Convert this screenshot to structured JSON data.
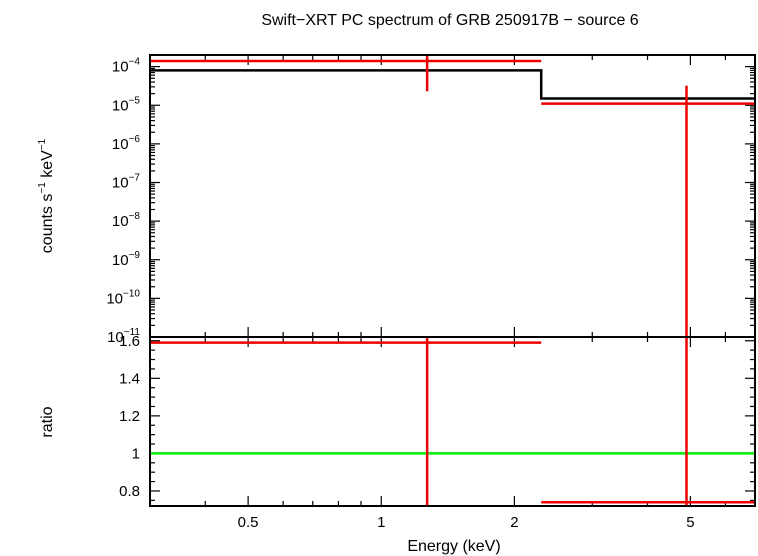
{
  "chart_data": {
    "title": "Swift−XRT PC spectrum of GRB 250917B − source 6",
    "xlabel": "Energy (keV)",
    "x_scale": "log",
    "xlim": [
      0.3,
      7.0
    ],
    "x_ticks": [
      {
        "value": 0.5,
        "label": "0.5"
      },
      {
        "value": 1,
        "label": "1"
      },
      {
        "value": 2,
        "label": "2"
      },
      {
        "value": 5,
        "label": "5"
      }
    ],
    "panels": [
      {
        "id": "spectrum",
        "type": "line",
        "ylabel_main": "counts s",
        "ylabel_sup1": "−1",
        "ylabel_mid": " keV",
        "ylabel_sup2": "−1",
        "y_scale": "log",
        "ylim": [
          1e-11,
          0.0002
        ],
        "y_ticks": [
          {
            "value": 0.0001,
            "base": "10",
            "exp": "−4"
          },
          {
            "value": 1e-05,
            "base": "10",
            "exp": "−5"
          },
          {
            "value": 1e-06,
            "base": "10",
            "exp": "−6"
          },
          {
            "value": 1e-07,
            "base": "10",
            "exp": "−7"
          },
          {
            "value": 1e-08,
            "base": "10",
            "exp": "−8"
          },
          {
            "value": 1e-09,
            "base": "10",
            "exp": "−9"
          },
          {
            "value": 1e-10,
            "base": "10",
            "exp": "−10"
          },
          {
            "value": 1e-11,
            "base": "10",
            "exp": "−11"
          }
        ],
        "model": {
          "color": "#000000",
          "steps": [
            {
              "x0": 0.3,
              "x1": 2.3,
              "y": 8e-05
            },
            {
              "x0": 2.3,
              "x1": 7.0,
              "y": 1.5e-05
            }
          ]
        },
        "data": {
          "color": "#ee0000",
          "points": [
            {
              "x": 1.27,
              "xlo": 0.3,
              "xhi": 2.3,
              "y": 0.00014,
              "ylo": 2.3e-05,
              "yhi": 0.0002
            },
            {
              "x": 4.9,
              "xlo": 2.3,
              "xhi": 7.0,
              "y": 1.1e-05,
              "ylo": 1e-11,
              "yhi": 3.2e-05
            }
          ]
        }
      },
      {
        "id": "ratio",
        "type": "scatter",
        "ylabel": "ratio",
        "y_scale": "linear",
        "ylim": [
          0.72,
          1.62
        ],
        "y_ticks": [
          {
            "value": 0.8,
            "label": "0.8"
          },
          {
            "value": 1.0,
            "label": "1"
          },
          {
            "value": 1.2,
            "label": "1.2"
          },
          {
            "value": 1.4,
            "label": "1.4"
          },
          {
            "value": 1.6,
            "label": "1.6"
          }
        ],
        "reference": {
          "y": 1.0,
          "color": "#00ee00"
        },
        "data": {
          "color": "#ee0000",
          "points": [
            {
              "x": 1.27,
              "xlo": 0.3,
              "xhi": 2.3,
              "y": 1.59,
              "ylo": 0.72,
              "yhi": 1.62
            },
            {
              "x": 4.9,
              "xlo": 2.3,
              "xhi": 7.0,
              "y": 0.74,
              "ylo": 0.72,
              "yhi": 1.62
            }
          ]
        }
      }
    ]
  }
}
